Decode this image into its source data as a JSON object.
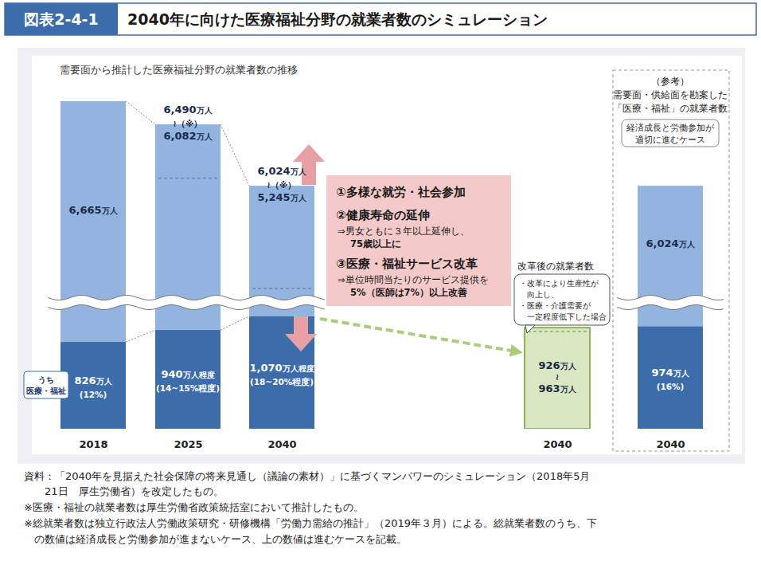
{
  "chart_data": {
    "type": "bar",
    "figure_number": "図表2-4-1",
    "title": "2040年に向けた医療福祉分野の就業者数のシミュレーション",
    "subtitle": "需要面から推計した医療福祉分野の就業者数の推移",
    "categories": [
      "2018",
      "2025",
      "2040",
      "2040",
      "2040"
    ],
    "series": [
      {
        "color": "#94b4e0",
        "values": [
          6665,
          6490,
          6024,
          null,
          6024
        ],
        "value_labels": [
          "6,665万人",
          "6,490万人",
          "6,024万人",
          null,
          "6,024万人"
        ],
        "low_values": [
          null,
          6082,
          5245,
          null,
          null
        ],
        "low_value_labels": [
          null,
          "6,082万人",
          "5,245万人",
          null,
          null
        ],
        "range_labels": [
          null,
          "≀（※）",
          "≀（※）",
          null,
          null
        ]
      },
      {
        "name": "うち 医療・福祉",
        "colors": [
          "#3d6cab",
          "#3d6cab",
          "#3d6cab",
          "#d9e8c2",
          "#3d6cab"
        ],
        "values": [
          826,
          940,
          1070,
          963,
          974
        ],
        "value_labels": [
          "826万人",
          "940万人程度",
          "1,070万人程度",
          "963万人",
          "974万人"
        ],
        "low_values": [
          null,
          null,
          null,
          926,
          null
        ],
        "low_value_labels": [
          null,
          null,
          null,
          "926万人",
          null
        ],
        "range_labels": [
          null,
          null,
          null,
          "≀",
          null
        ],
        "share_labels": [
          "(12%)",
          "(14~15%程度)",
          "(18~20%程度)",
          null,
          "(16%)"
        ]
      }
    ],
    "data_labels": true,
    "tick_labels": "x",
    "annotations": {
      "measures": [
        {
          "title": "①多様な就労・社会参加",
          "details": []
        },
        {
          "title": "②健康寿命の延伸",
          "details": [
            "⇒男女ともに３年以上延伸し、",
            "75歳以上に"
          ]
        },
        {
          "title": "③医療・福祉サービス改革",
          "details": [
            "⇒単位時間当たりのサービス提供を",
            "5%（医師は7%）以上改善"
          ]
        }
      ],
      "reform_title": "改革後の就業者数",
      "reform_conditions": [
        "・改革により生産性が",
        "向上し、",
        "・医療・介護需要が",
        "一定程度低下した場合"
      ],
      "reference": [
        "（参考）",
        "需要面・供給面を勘案した",
        "「医療・福祉」の就業者数"
      ],
      "reference_case": [
        "経済成長と労働参加が",
        "適切に進むケース"
      ],
      "notes": [
        "資料：「2040年を見据えた社会保障の将来見通し（議論の素材）」に基づくマンパワーのシミュレーション（2018年5月",
        "　　21日　厚生労働省）を改定したもの。",
        "※医療・福祉の就業者数は厚生労働省政策統括室において推計したもの。",
        "※総就業者数は独立行政法人労働政策研究・研修機構「労働力需給の推計」（2019年３月）による。総就業者数のうち、下",
        "　の数値は経済成長と労働参加が進まないケース、上の数値は進むケースを記載。"
      ]
    }
  }
}
